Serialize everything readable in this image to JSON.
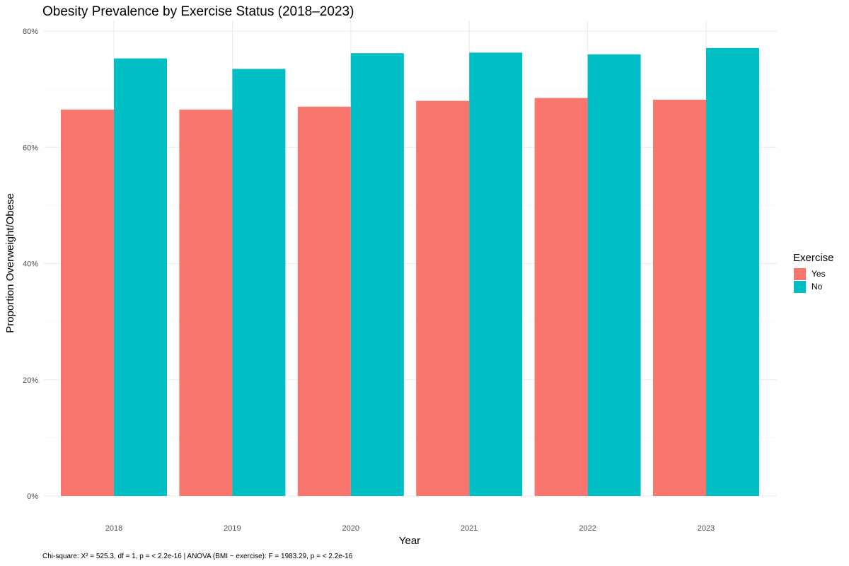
{
  "chart_data": {
    "type": "bar",
    "title": "Obesity Prevalence by Exercise Status (2018–2023)",
    "xlabel": "Year",
    "ylabel": "Proportion Overweight/Obese",
    "caption": "Chi-square: X² = 525.3, df = 1, p = < 2.2e-16 | ANOVA (BMI ~ exercise): F = 1983.29, p = < 2.2e-16",
    "categories": [
      "2018",
      "2019",
      "2020",
      "2021",
      "2022",
      "2023"
    ],
    "series": [
      {
        "name": "Yes",
        "color": "#F8766D",
        "values": [
          0.665,
          0.665,
          0.67,
          0.68,
          0.685,
          0.682
        ]
      },
      {
        "name": "No",
        "color": "#00BFC4",
        "values": [
          0.753,
          0.735,
          0.762,
          0.763,
          0.76,
          0.771
        ]
      }
    ],
    "ylim": [
      0,
      0.8
    ],
    "yticks": [
      0,
      0.2,
      0.4,
      0.6,
      0.8
    ],
    "ytick_labels": [
      "0%",
      "20%",
      "40%",
      "60%",
      "80%"
    ],
    "grid": true,
    "legend": {
      "title": "Exercise",
      "placement": "right"
    }
  }
}
